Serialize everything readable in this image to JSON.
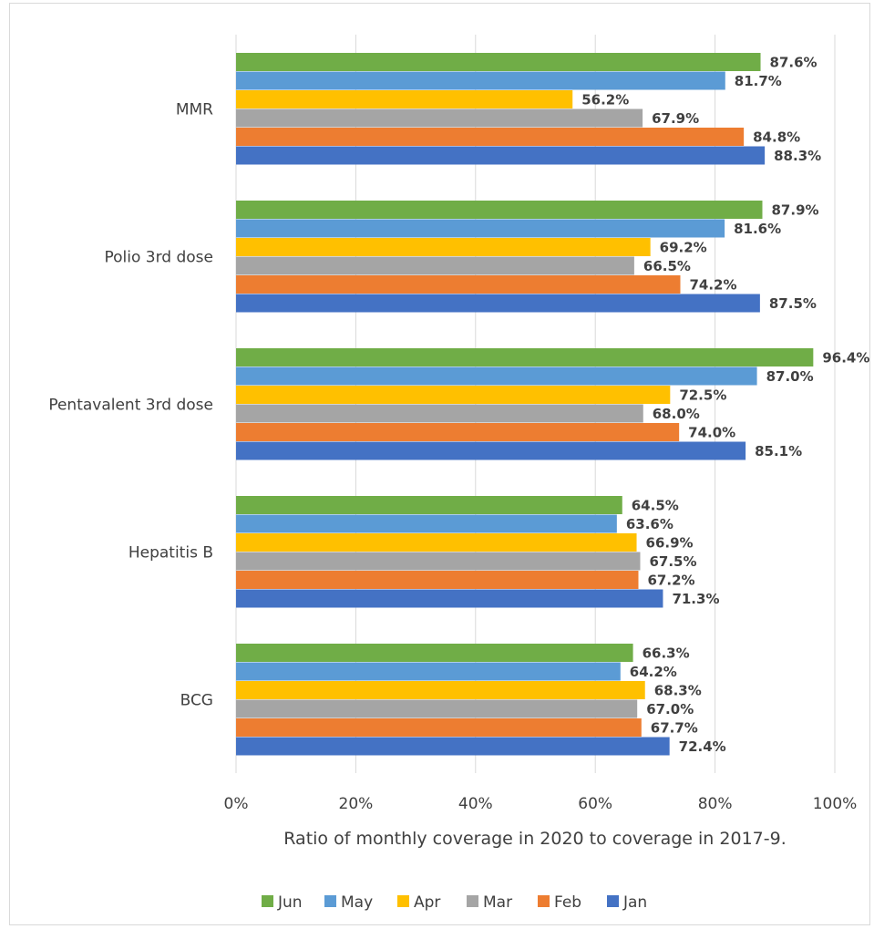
{
  "chart_data": {
    "type": "bar",
    "orientation": "horizontal",
    "categories": [
      "MMR",
      "Polio 3rd dose",
      "Pentavalent 3rd dose",
      "Hepatitis B",
      "BCG"
    ],
    "series": [
      {
        "name": "Jun",
        "color": "#70ad47",
        "values": [
          87.6,
          87.9,
          96.4,
          64.5,
          66.3
        ],
        "labels": [
          "87.6%",
          "87.9%",
          "96.4%",
          "64.5%",
          "66.3%"
        ]
      },
      {
        "name": "May",
        "color": "#5b9bd5",
        "values": [
          81.7,
          81.6,
          87.0,
          63.6,
          64.2
        ],
        "labels": [
          "81.7%",
          "81.6%",
          "87.0%",
          "63.6%",
          "64.2%"
        ]
      },
      {
        "name": "Apr",
        "color": "#ffc000",
        "values": [
          56.2,
          69.2,
          72.5,
          66.9,
          68.3
        ],
        "labels": [
          "56.2%",
          "69.2%",
          "72.5%",
          "66.9%",
          "68.3%"
        ]
      },
      {
        "name": "Mar",
        "color": "#a5a5a5",
        "values": [
          67.9,
          66.5,
          68.0,
          67.5,
          67.0
        ],
        "labels": [
          "67.9%",
          "66.5%",
          "68.0%",
          "67.5%",
          "67.0%"
        ]
      },
      {
        "name": "Feb",
        "color": "#ed7d31",
        "values": [
          84.8,
          74.2,
          74.0,
          67.2,
          67.7
        ],
        "labels": [
          "84.8%",
          "74.2%",
          "74.0%",
          "67.2%",
          "67.7%"
        ]
      },
      {
        "name": "Jan",
        "color": "#4472c4",
        "values": [
          88.3,
          87.5,
          85.1,
          71.3,
          72.4
        ],
        "labels": [
          "88.3%",
          "87.5%",
          "85.1%",
          "71.3%",
          "72.4%"
        ]
      }
    ],
    "x_ticks": [
      0,
      20,
      40,
      60,
      80,
      100
    ],
    "x_tick_labels": [
      "0%",
      "20%",
      "40%",
      "60%",
      "80%",
      "100%"
    ],
    "xlim": [
      0,
      100
    ],
    "xlabel": "Ratio of monthly coverage in 2020 to coverage in 2017-9.",
    "ylabel": "",
    "title": "",
    "grid": "vertical major gridlines",
    "legend_position": "bottom",
    "gridline_color": "#d9d9d9",
    "text_color": "#404040"
  }
}
